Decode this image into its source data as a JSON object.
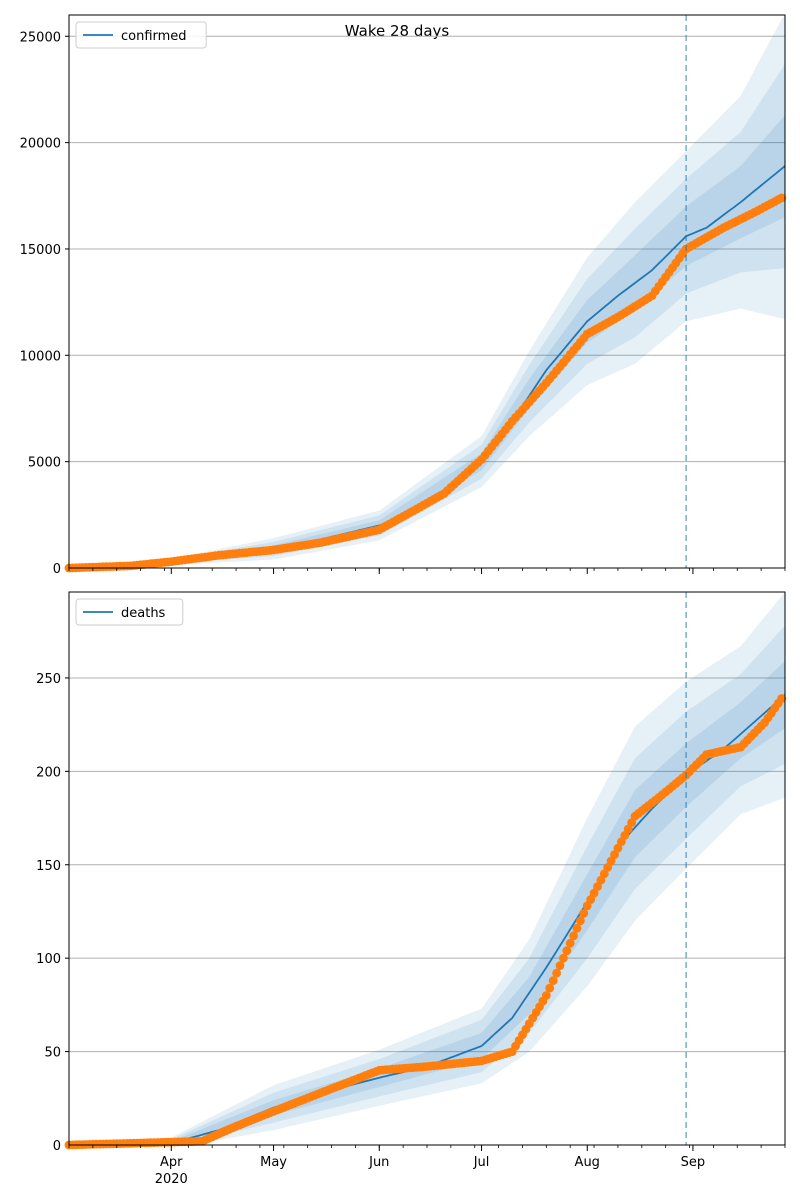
{
  "title": "Wake 28 days",
  "colors": {
    "model_line": "#1f77b4",
    "band": "#1f77b4",
    "observed": "#ff7f0e",
    "grid": "#b0b0b0",
    "vline": "#1f77b4"
  },
  "chart_data": [
    {
      "type": "line",
      "panel": "top",
      "legend_label": "confirmed",
      "legend_position": "top-left",
      "grid": "y",
      "xlim": [
        "2020-03-02",
        "2020-09-28"
      ],
      "ylim": [
        0,
        26000
      ],
      "yticks": [
        0,
        5000,
        10000,
        15000,
        20000,
        25000
      ],
      "forecast_start": "2020-08-30",
      "model_line": {
        "x": [
          "2020-03-02",
          "2020-03-15",
          "2020-04-01",
          "2020-04-15",
          "2020-05-01",
          "2020-05-15",
          "2020-06-01",
          "2020-06-15",
          "2020-07-01",
          "2020-07-10",
          "2020-07-20",
          "2020-08-01",
          "2020-08-10",
          "2020-08-20",
          "2020-08-30",
          "2020-09-05",
          "2020-09-15",
          "2020-09-28"
        ],
        "y": [
          0,
          50,
          300,
          550,
          900,
          1350,
          2000,
          2900,
          5000,
          6900,
          9300,
          11600,
          12800,
          14000,
          15600,
          16000,
          17200,
          18900
        ]
      },
      "bands": {
        "x": [
          "2020-03-02",
          "2020-04-01",
          "2020-05-01",
          "2020-06-01",
          "2020-07-01",
          "2020-07-15",
          "2020-08-01",
          "2020-08-15",
          "2020-08-30",
          "2020-09-15",
          "2020-09-28"
        ],
        "center": [
          0,
          300,
          900,
          2000,
          5000,
          8200,
          11600,
          13400,
          15600,
          17200,
          18900
        ],
        "outer_spread": [
          0,
          150,
          500,
          700,
          1200,
          2000,
          3000,
          3800,
          4000,
          5000,
          7200
        ],
        "mid_spread": [
          0,
          100,
          330,
          470,
          800,
          1350,
          2000,
          2550,
          2700,
          3300,
          4800
        ],
        "inner_spread": [
          0,
          50,
          170,
          240,
          400,
          700,
          1000,
          1300,
          1400,
          1700,
          2400
        ]
      },
      "observed": {
        "x": [
          "2020-03-02",
          "2020-03-20",
          "2020-04-01",
          "2020-04-15",
          "2020-05-01",
          "2020-05-15",
          "2020-06-01",
          "2020-06-10",
          "2020-06-20",
          "2020-07-01",
          "2020-07-10",
          "2020-07-20",
          "2020-08-01",
          "2020-08-10",
          "2020-08-20",
          "2020-08-30",
          "2020-09-10",
          "2020-09-20",
          "2020-09-27"
        ],
        "y": [
          0,
          100,
          300,
          600,
          850,
          1200,
          1800,
          2600,
          3500,
          5100,
          6900,
          8700,
          11000,
          11800,
          12800,
          15000,
          16000,
          16800,
          17400
        ]
      },
      "x_ticks": [
        {
          "date": "2020-04-01",
          "label": "Apr",
          "sublabel": "2020"
        },
        {
          "date": "2020-05-01",
          "label": "May"
        },
        {
          "date": "2020-06-01",
          "label": "Jun"
        },
        {
          "date": "2020-07-01",
          "label": "Jul"
        },
        {
          "date": "2020-08-01",
          "label": "Aug"
        },
        {
          "date": "2020-09-01",
          "label": "Sep"
        }
      ]
    },
    {
      "type": "line",
      "panel": "bottom",
      "legend_label": "deaths",
      "legend_position": "top-left",
      "grid": "y",
      "xlim": [
        "2020-03-02",
        "2020-09-28"
      ],
      "ylim": [
        0,
        296
      ],
      "yticks": [
        0,
        50,
        100,
        150,
        200,
        250
      ],
      "forecast_start": "2020-08-30",
      "model_line": {
        "x": [
          "2020-03-02",
          "2020-04-01",
          "2020-04-15",
          "2020-05-01",
          "2020-05-15",
          "2020-06-01",
          "2020-06-15",
          "2020-07-01",
          "2020-07-10",
          "2020-07-20",
          "2020-08-01",
          "2020-08-10",
          "2020-08-20",
          "2020-08-30",
          "2020-09-10",
          "2020-09-20",
          "2020-09-28"
        ],
        "y": [
          0,
          1,
          8,
          20,
          28,
          36,
          42,
          53,
          68,
          95,
          130,
          160,
          180,
          198,
          212,
          228,
          241
        ]
      },
      "bands": {
        "x": [
          "2020-03-02",
          "2020-04-01",
          "2020-05-01",
          "2020-06-01",
          "2020-07-01",
          "2020-07-15",
          "2020-08-01",
          "2020-08-15",
          "2020-08-30",
          "2020-09-15",
          "2020-09-28"
        ],
        "center": [
          0,
          1,
          20,
          36,
          53,
          80,
          130,
          172,
          198,
          222,
          241
        ],
        "outer_spread": [
          0,
          3,
          12,
          15,
          20,
          30,
          45,
          52,
          50,
          45,
          55
        ],
        "mid_spread": [
          0,
          2,
          8,
          10,
          14,
          20,
          30,
          35,
          34,
          30,
          37
        ],
        "inner_spread": [
          0,
          1,
          4,
          5,
          7,
          10,
          15,
          18,
          17,
          15,
          18
        ]
      },
      "observed": {
        "x": [
          "2020-03-02",
          "2020-04-10",
          "2020-04-20",
          "2020-05-01",
          "2020-05-15",
          "2020-06-01",
          "2020-06-15",
          "2020-07-01",
          "2020-07-10",
          "2020-07-20",
          "2020-08-01",
          "2020-08-08",
          "2020-08-15",
          "2020-08-22",
          "2020-08-30",
          "2020-09-05",
          "2020-09-15",
          "2020-09-22",
          "2020-09-27"
        ],
        "y": [
          0,
          2,
          10,
          18,
          28,
          40,
          42,
          45,
          50,
          80,
          128,
          152,
          176,
          186,
          198,
          209,
          213,
          226,
          239
        ]
      },
      "x_ticks": [
        {
          "date": "2020-04-01",
          "label": "Apr",
          "sublabel": "2020"
        },
        {
          "date": "2020-05-01",
          "label": "May"
        },
        {
          "date": "2020-06-01",
          "label": "Jun"
        },
        {
          "date": "2020-07-01",
          "label": "Jul"
        },
        {
          "date": "2020-08-01",
          "label": "Aug"
        },
        {
          "date": "2020-09-01",
          "label": "Sep"
        }
      ]
    }
  ]
}
